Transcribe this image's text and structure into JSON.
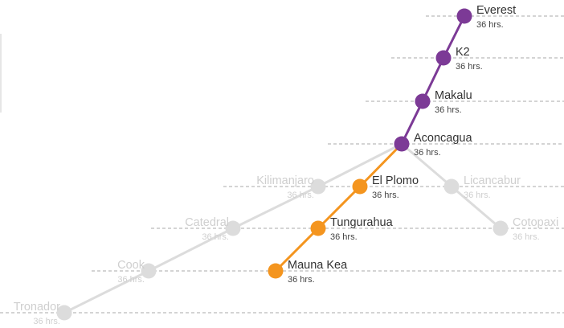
{
  "colors": {
    "summit": "#7c3a96",
    "route": "#f4951f",
    "inactive": "#dcdcdc",
    "inactive_text": "#cfcfcf",
    "guide": "#a9a9a9",
    "text": "#333333"
  },
  "duration_label": "36 hrs.",
  "nodes": [
    {
      "id": "everest",
      "name": "Everest",
      "group": "summit"
    },
    {
      "id": "k2",
      "name": "K2",
      "group": "summit"
    },
    {
      "id": "makalu",
      "name": "Makalu",
      "group": "summit"
    },
    {
      "id": "aconcagua",
      "name": "Aconcagua",
      "group": "summit"
    },
    {
      "id": "kilimanjaro",
      "name": "Kilimanjaro",
      "group": "inactive"
    },
    {
      "id": "el-plomo",
      "name": "El Plomo",
      "group": "route"
    },
    {
      "id": "licancabur",
      "name": "Licancabur",
      "group": "inactive"
    },
    {
      "id": "catedral",
      "name": "Catedral",
      "group": "inactive"
    },
    {
      "id": "tungurahua",
      "name": "Tungurahua",
      "group": "route"
    },
    {
      "id": "cotopaxi",
      "name": "Cotopaxi",
      "group": "inactive"
    },
    {
      "id": "cook",
      "name": "Cook",
      "group": "inactive"
    },
    {
      "id": "mauna-kea",
      "name": "Mauna Kea",
      "group": "route"
    },
    {
      "id": "tronador",
      "name": "Tronador",
      "group": "inactive"
    }
  ],
  "links": [
    {
      "from": "everest",
      "to": "k2",
      "group": "summit"
    },
    {
      "from": "k2",
      "to": "makalu",
      "group": "summit"
    },
    {
      "from": "makalu",
      "to": "aconcagua",
      "group": "summit"
    },
    {
      "from": "aconcagua",
      "to": "el-plomo",
      "group": "route"
    },
    {
      "from": "el-plomo",
      "to": "tungurahua",
      "group": "route"
    },
    {
      "from": "tungurahua",
      "to": "mauna-kea",
      "group": "route"
    },
    {
      "from": "aconcagua",
      "to": "kilimanjaro",
      "group": "inactive"
    },
    {
      "from": "kilimanjaro",
      "to": "catedral",
      "group": "inactive"
    },
    {
      "from": "catedral",
      "to": "cook",
      "group": "inactive"
    },
    {
      "from": "cook",
      "to": "tronador",
      "group": "inactive"
    },
    {
      "from": "aconcagua",
      "to": "licancabur",
      "group": "inactive"
    },
    {
      "from": "licancabur",
      "to": "cotopaxi",
      "group": "inactive"
    }
  ]
}
